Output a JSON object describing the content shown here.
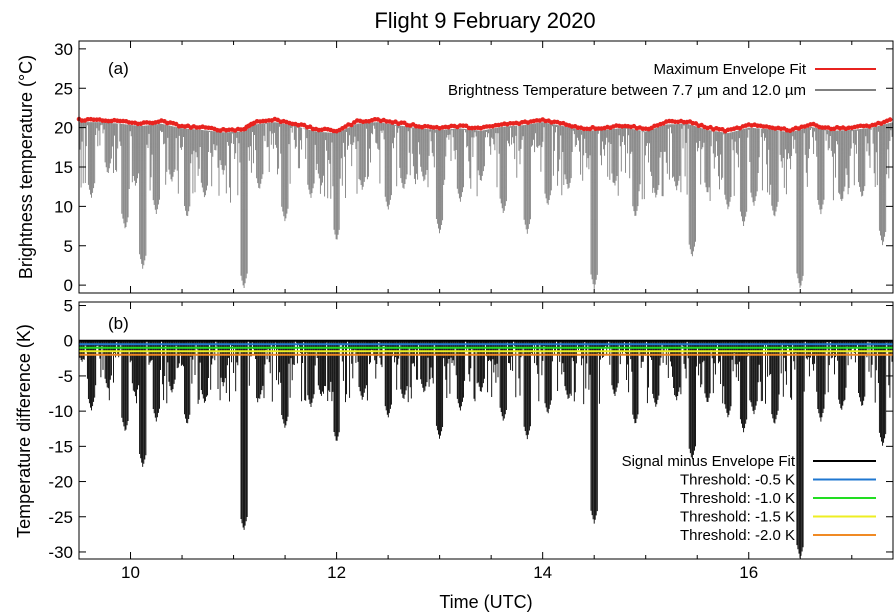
{
  "chart_data": [
    {
      "panel_label": "(a)",
      "type": "line",
      "title": "Flight 9 February 2020",
      "xlabel": "",
      "ylabel": "Brightness temperature (°C)",
      "xlim": [
        9.5,
        17.4
      ],
      "ylim": [
        -1,
        31
      ],
      "x_ticks": [
        10,
        12,
        14,
        16
      ],
      "x_ticklabels": [
        "",
        "",
        "",
        ""
      ],
      "y_ticks": [
        0,
        5,
        10,
        15,
        20,
        25,
        30
      ],
      "y_ticklabels": [
        "0",
        "5",
        "10",
        "15",
        "20",
        "25",
        "30"
      ],
      "legend_position": "top-right",
      "series": [
        {
          "name": "Maximum Envelope Fit",
          "color": "#e8231f",
          "marker": "dots",
          "x": [
            9.5,
            9.7,
            9.9,
            10.1,
            10.3,
            10.5,
            10.7,
            10.9,
            11.1,
            11.2,
            11.4,
            11.6,
            11.8,
            12.0,
            12.2,
            12.4,
            12.6,
            12.8,
            13.0,
            13.2,
            13.4,
            13.6,
            13.8,
            14.0,
            14.2,
            14.4,
            14.6,
            14.8,
            15.0,
            15.2,
            15.4,
            15.6,
            15.8,
            16.0,
            16.2,
            16.4,
            16.6,
            16.8,
            17.0,
            17.2,
            17.4
          ],
          "y": [
            21.0,
            21.0,
            20.8,
            20.5,
            20.8,
            20.2,
            20.0,
            19.7,
            19.8,
            20.7,
            21.0,
            20.5,
            19.8,
            19.6,
            20.8,
            21.0,
            20.6,
            20.2,
            20.0,
            20.2,
            19.9,
            20.4,
            20.6,
            21.0,
            20.5,
            19.9,
            20.0,
            20.3,
            19.8,
            20.7,
            20.8,
            20.0,
            19.6,
            20.3,
            20.1,
            19.7,
            20.4,
            19.9,
            20.0,
            20.3,
            21.0
          ]
        },
        {
          "name": "Brightness Temperature between 7.7 µm and 12.0 µm",
          "color": "#808080",
          "marker": "dense-vertical-traces",
          "dips_x": [
            9.62,
            9.78,
            9.95,
            10.05,
            10.12,
            10.25,
            10.4,
            10.55,
            10.72,
            10.9,
            11.1,
            11.25,
            11.5,
            11.75,
            11.85,
            12.0,
            12.25,
            12.5,
            12.65,
            12.85,
            13.0,
            13.2,
            13.4,
            13.62,
            13.85,
            14.05,
            14.25,
            14.5,
            14.7,
            14.9,
            15.1,
            15.3,
            15.45,
            15.6,
            15.8,
            15.95,
            16.05,
            16.25,
            16.5,
            16.7,
            16.9,
            17.1,
            17.3
          ],
          "dips_y": [
            11.0,
            14.0,
            7.0,
            12.5,
            2.0,
            9.0,
            13.0,
            8.5,
            11.0,
            14.0,
            -0.5,
            12.0,
            8.0,
            11.0,
            12.5,
            5.5,
            12.0,
            9.5,
            12.0,
            13.0,
            6.5,
            10.5,
            13.0,
            9.0,
            6.5,
            10.0,
            12.0,
            -0.5,
            12.5,
            8.5,
            11.0,
            12.0,
            3.5,
            11.5,
            9.5,
            7.5,
            10.0,
            8.5,
            -0.5,
            9.0,
            10.5,
            11.0,
            5.0
          ]
        }
      ]
    },
    {
      "panel_label": "(b)",
      "type": "line",
      "xlabel": "Time (UTC)",
      "ylabel": "Temperature difference (K)",
      "xlim": [
        9.5,
        17.4
      ],
      "ylim": [
        -31,
        5.5
      ],
      "x_ticks": [
        10,
        12,
        14,
        16
      ],
      "x_ticklabels": [
        "10",
        "12",
        "14",
        "16"
      ],
      "y_ticks": [
        5,
        0,
        -5,
        -10,
        -15,
        -20,
        -25,
        -30
      ],
      "y_ticklabels": [
        "5",
        "0",
        "-5",
        "-10",
        "-15",
        "-20",
        "-25",
        "-30"
      ],
      "legend_position": "bottom-right",
      "series": [
        {
          "name": "Signal minus Envelope Fit",
          "color": "#000000",
          "marker": "dense-vertical-traces",
          "dips_x": [
            9.62,
            9.78,
            9.95,
            10.05,
            10.12,
            10.25,
            10.4,
            10.55,
            10.72,
            10.9,
            11.1,
            11.25,
            11.5,
            11.75,
            11.85,
            12.0,
            12.25,
            12.5,
            12.65,
            12.85,
            13.0,
            13.2,
            13.4,
            13.62,
            13.85,
            14.05,
            14.25,
            14.5,
            14.7,
            14.9,
            15.1,
            15.3,
            15.45,
            15.6,
            15.8,
            15.95,
            16.05,
            16.25,
            16.5,
            16.7,
            16.9,
            17.1,
            17.3
          ],
          "dips_y": [
            -10.0,
            -7.0,
            -13.0,
            -8.0,
            -18.0,
            -11.5,
            -7.5,
            -12.0,
            -9.0,
            -6.5,
            -27.0,
            -8.5,
            -12.5,
            -9.5,
            -8.0,
            -14.5,
            -8.5,
            -11.0,
            -8.5,
            -7.5,
            -14.0,
            -10.0,
            -7.5,
            -11.5,
            -14.0,
            -10.5,
            -8.5,
            -26.0,
            -8.0,
            -12.0,
            -9.5,
            -8.5,
            -17.0,
            -9.0,
            -11.0,
            -13.0,
            -10.5,
            -12.0,
            -31.0,
            -11.5,
            -10.0,
            -9.5,
            -15.0
          ]
        },
        {
          "name": "Threshold: -0.5 K",
          "color": "#1f77d0",
          "y": -0.5
        },
        {
          "name": "Threshold: -1.0 K",
          "color": "#22dd22",
          "y": -1.0
        },
        {
          "name": "Threshold: -1.5 K",
          "color": "#eeee22",
          "y": -1.5
        },
        {
          "name": "Threshold: -2.0 K",
          "color": "#f08a24",
          "y": -2.0
        }
      ]
    }
  ]
}
